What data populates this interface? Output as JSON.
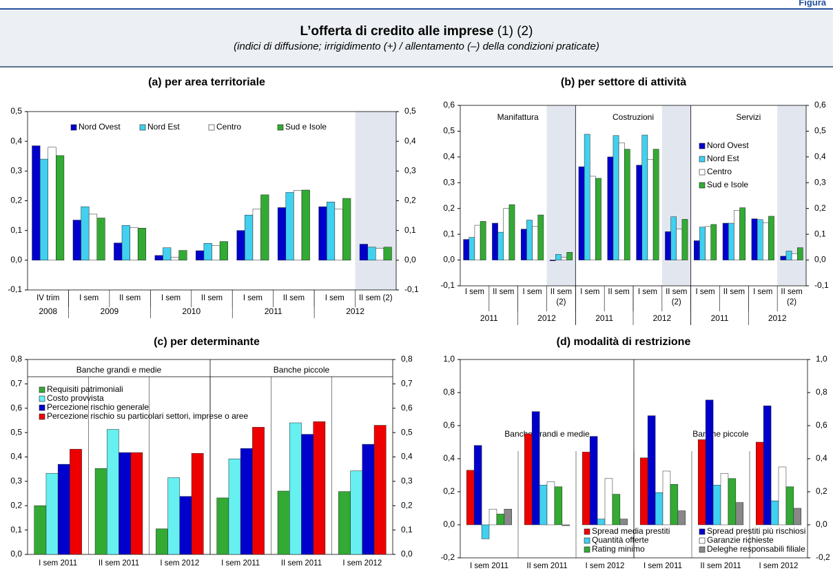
{
  "header": {
    "figure_label": "Figura",
    "title": "L’offerta di credito alle imprese",
    "title_notes": "(1) (2)",
    "subtitle": "(indici di diffusione; irrigidimento (+) / allentamento (–) della condizioni praticate)"
  },
  "chart_data": [
    {
      "type": "bar",
      "title": "(a) per area territoriale",
      "legend": "top",
      "categories": [
        "IV trim",
        "I sem",
        "II sem",
        "I sem",
        "II sem",
        "I sem",
        "II sem",
        "I sem",
        "II sem (2)"
      ],
      "years": [
        {
          "label": "2008",
          "count": 1
        },
        {
          "label": "2009",
          "count": 2
        },
        {
          "label": "2010",
          "count": 2
        },
        {
          "label": "2011",
          "count": 2
        },
        {
          "label": "2012",
          "count": 2
        }
      ],
      "shaded_categories": [
        8
      ],
      "series": [
        {
          "name": "Nord Ovest",
          "color": "#0000cc",
          "values": [
            0.385,
            0.135,
            0.058,
            0.016,
            0.032,
            0.1,
            0.177,
            0.18,
            0.054
          ]
        },
        {
          "name": "Nord Est",
          "color": "#40d0f0",
          "values": [
            0.34,
            0.18,
            0.117,
            0.042,
            0.057,
            0.152,
            0.228,
            0.196,
            0.044
          ]
        },
        {
          "name": "Centro",
          "color": "#ffffff",
          "values": [
            0.38,
            0.155,
            0.11,
            0.01,
            0.05,
            0.172,
            0.235,
            0.172,
            0.04
          ]
        },
        {
          "name": "Sud e Isole",
          "color": "#33aa33",
          "values": [
            0.352,
            0.142,
            0.108,
            0.033,
            0.063,
            0.22,
            0.236,
            0.208,
            0.044
          ]
        }
      ],
      "ylim": [
        -0.1,
        0.5
      ],
      "yticks": [
        {
          "value": -0.1,
          "label": "-0,1"
        },
        {
          "value": 0,
          "label": "0,0"
        },
        {
          "value": 0.1,
          "label": "0,1"
        },
        {
          "value": 0.2,
          "label": "0,2"
        },
        {
          "value": 0.3,
          "label": "0,3"
        },
        {
          "value": 0.4,
          "label": "0,4"
        },
        {
          "value": 0.5,
          "label": "0,5"
        }
      ]
    },
    {
      "type": "bar",
      "title": "(b) per settore di attività",
      "legend": "right",
      "categories": [
        "I sem",
        "II sem",
        "I sem",
        "II sem (2)",
        "I sem",
        "II sem",
        "I sem",
        "II sem (2)",
        "I sem",
        "II sem",
        "I sem",
        "II sem (2)"
      ],
      "years": [
        {
          "label": "2011",
          "count": 2
        },
        {
          "label": "2012",
          "count": 2
        },
        {
          "label": "2011",
          "count": 2
        },
        {
          "label": "2012",
          "count": 2
        },
        {
          "label": "2011",
          "count": 2
        },
        {
          "label": "2012",
          "count": 2
        }
      ],
      "groups": [
        {
          "label": "Manifattura",
          "count": 4
        },
        {
          "label": "Costruzioni",
          "count": 4
        },
        {
          "label": "Servizi",
          "count": 4
        }
      ],
      "shaded_categories": [
        3,
        7,
        11
      ],
      "series": [
        {
          "name": "Nord Ovest",
          "color": "#0000cc",
          "values": [
            0.08,
            0.143,
            0.12,
            -0.003,
            0.362,
            0.4,
            0.368,
            0.11,
            0.075,
            0.143,
            0.16,
            0.015
          ]
        },
        {
          "name": "Nord Est",
          "color": "#40d0f0",
          "values": [
            0.088,
            0.108,
            0.155,
            0.022,
            0.488,
            0.483,
            0.485,
            0.168,
            0.128,
            0.143,
            0.157,
            0.035
          ]
        },
        {
          "name": "Centro",
          "color": "#ffffff",
          "values": [
            0.135,
            0.2,
            0.13,
            0.01,
            0.325,
            0.455,
            0.39,
            0.12,
            0.13,
            0.193,
            0.145,
            0.025
          ]
        },
        {
          "name": "Sud e Isole",
          "color": "#33aa33",
          "values": [
            0.15,
            0.215,
            0.175,
            0.03,
            0.317,
            0.43,
            0.43,
            0.158,
            0.138,
            0.203,
            0.17,
            0.048
          ]
        }
      ],
      "ylim": [
        -0.1,
        0.6
      ],
      "yticks": [
        {
          "value": -0.1,
          "label": "-0,1"
        },
        {
          "value": 0,
          "label": "0,0"
        },
        {
          "value": 0.1,
          "label": "0,1"
        },
        {
          "value": 0.2,
          "label": "0,2"
        },
        {
          "value": 0.3,
          "label": "0,3"
        },
        {
          "value": 0.4,
          "label": "0,4"
        },
        {
          "value": 0.5,
          "label": "0,5"
        },
        {
          "value": 0.6,
          "label": "0,6"
        }
      ]
    },
    {
      "type": "bar",
      "title": "(c) per determinante",
      "legend": "upper-left",
      "categories": [
        "I sem 2011",
        "II sem 2011",
        "I sem 2012",
        "I sem 2011",
        "II sem 2011",
        "I sem 2012"
      ],
      "groups": [
        {
          "label": "Banche grandi e medie",
          "count": 3
        },
        {
          "label": "Banche piccole",
          "count": 3
        }
      ],
      "series": [
        {
          "name": "Requisiti patrimoniali",
          "color": "#33aa33",
          "values": [
            0.2,
            0.353,
            0.105,
            0.232,
            0.26,
            0.258
          ]
        },
        {
          "name": "Costo provvista",
          "color": "#66f0f0",
          "values": [
            0.333,
            0.513,
            0.315,
            0.392,
            0.54,
            0.343
          ]
        },
        {
          "name": "Percezione rischio generale",
          "color": "#0000cc",
          "values": [
            0.37,
            0.418,
            0.238,
            0.435,
            0.493,
            0.452
          ]
        },
        {
          "name": "Percezione rischio su particolari settori, imprese o aree",
          "color": "#ee0000",
          "values": [
            0.432,
            0.418,
            0.415,
            0.522,
            0.545,
            0.53
          ]
        }
      ],
      "ylim": [
        0,
        0.8
      ],
      "yticks": [
        {
          "value": 0,
          "label": "0,0"
        },
        {
          "value": 0.1,
          "label": "0,1"
        },
        {
          "value": 0.2,
          "label": "0,2"
        },
        {
          "value": 0.3,
          "label": "0,3"
        },
        {
          "value": 0.4,
          "label": "0,4"
        },
        {
          "value": 0.5,
          "label": "0,5"
        },
        {
          "value": 0.6,
          "label": "0,6"
        },
        {
          "value": 0.7,
          "label": "0,7"
        },
        {
          "value": 0.8,
          "label": "0,8"
        }
      ]
    },
    {
      "type": "bar",
      "title": "(d) modalità di restrizione",
      "legend": "bottom",
      "categories": [
        "I sem 2011",
        "II sem 2011",
        "I sem 2012",
        "I sem 2011",
        "II sem 2011",
        "I sem 2012"
      ],
      "groups": [
        {
          "label": "Banche grandi e medie",
          "count": 3
        },
        {
          "label": "Banche piccole",
          "count": 3
        }
      ],
      "series": [
        {
          "name": "Spread media prestiti",
          "color": "#ee0000",
          "values": [
            0.33,
            0.55,
            0.44,
            0.405,
            0.515,
            0.5
          ]
        },
        {
          "name": "Spread prestiti più rischiosi",
          "color": "#0000cc",
          "values": [
            0.48,
            0.685,
            0.535,
            0.66,
            0.755,
            0.72
          ]
        },
        {
          "name": "Quantità offerte",
          "color": "#40d0f0",
          "values": [
            -0.085,
            0.24,
            0.035,
            0.195,
            0.24,
            0.145
          ]
        },
        {
          "name": "Garanzie richieste",
          "color": "#ffffff",
          "values": [
            0.095,
            0.26,
            0.28,
            0.325,
            0.31,
            0.35
          ]
        },
        {
          "name": "Rating minimo",
          "color": "#33aa33",
          "values": [
            0.065,
            0.23,
            0.185,
            0.245,
            0.28,
            0.23
          ]
        },
        {
          "name": "Deleghe responsabili filiale",
          "color": "#888888",
          "values": [
            0.095,
            -0.005,
            0.035,
            0.085,
            0.135,
            0.1
          ]
        }
      ],
      "ylim": [
        -0.2,
        1.0
      ],
      "yticks": [
        {
          "value": -0.2,
          "label": "-0,2"
        },
        {
          "value": 0,
          "label": "0,0"
        },
        {
          "value": 0.2,
          "label": "0,2"
        },
        {
          "value": 0.4,
          "label": "0,4"
        },
        {
          "value": 0.6,
          "label": "0,6"
        },
        {
          "value": 0.8,
          "label": "0,8"
        },
        {
          "value": 1.0,
          "label": "1,0"
        }
      ]
    }
  ]
}
